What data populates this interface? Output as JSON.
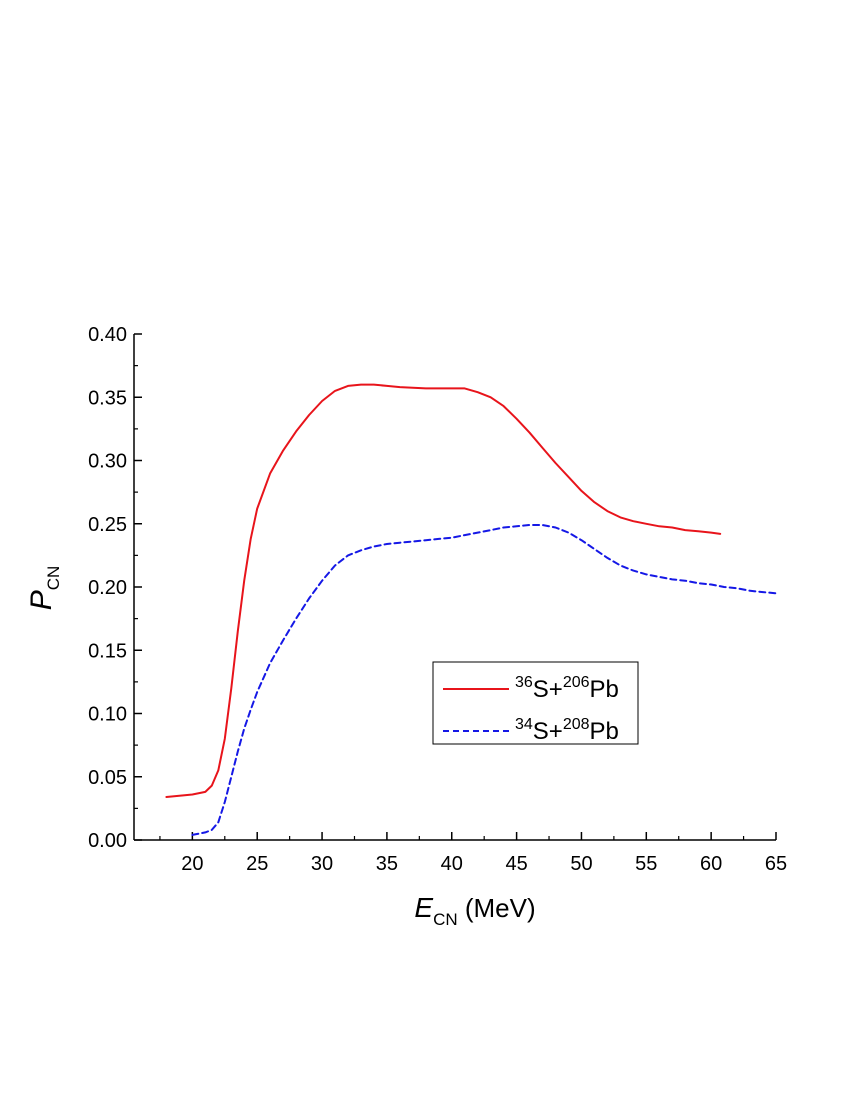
{
  "chart_data": {
    "type": "line",
    "xlabel": {
      "main": "E",
      "sub": "CN",
      "unit": " (MeV)"
    },
    "ylabel": {
      "main": "P",
      "sub": "CN"
    },
    "xlim": [
      15.5,
      65
    ],
    "ylim": [
      0,
      0.4
    ],
    "xticks": [
      20,
      25,
      30,
      35,
      40,
      45,
      50,
      55,
      60,
      65
    ],
    "yticks": [
      0.0,
      0.05,
      0.1,
      0.15,
      0.2,
      0.25,
      0.3,
      0.35,
      0.4
    ],
    "xtick_labels": [
      "20",
      "25",
      "30",
      "35",
      "40",
      "45",
      "50",
      "55",
      "60",
      "65"
    ],
    "ytick_labels": [
      "0.00",
      "0.05",
      "0.10",
      "0.15",
      "0.20",
      "0.25",
      "0.30",
      "0.35",
      "0.40"
    ],
    "grid": false,
    "legend_position": "center-right",
    "series": [
      {
        "label": {
          "sup1": "36",
          "el1": "S+",
          "sup2": "206",
          "el2": "Pb"
        },
        "color": "#e8141b",
        "style": "solid",
        "x": [
          18,
          19,
          20,
          21,
          21.5,
          22,
          22.5,
          23,
          23.5,
          24,
          24.5,
          25,
          26,
          27,
          28,
          29,
          30,
          31,
          32,
          33,
          34,
          35,
          36,
          38,
          40,
          41,
          42,
          43,
          44,
          45,
          46,
          47,
          48,
          49,
          50,
          51,
          52,
          53,
          54,
          55,
          56,
          57,
          58,
          59,
          60,
          60.7
        ],
        "y": [
          0.034,
          0.035,
          0.036,
          0.038,
          0.043,
          0.055,
          0.08,
          0.12,
          0.165,
          0.205,
          0.238,
          0.262,
          0.29,
          0.308,
          0.323,
          0.336,
          0.347,
          0.355,
          0.359,
          0.36,
          0.36,
          0.359,
          0.358,
          0.357,
          0.357,
          0.357,
          0.354,
          0.35,
          0.343,
          0.333,
          0.322,
          0.31,
          0.298,
          0.287,
          0.276,
          0.267,
          0.26,
          0.255,
          0.252,
          0.25,
          0.248,
          0.247,
          0.245,
          0.244,
          0.243,
          0.242
        ]
      },
      {
        "label": {
          "sup1": "34",
          "el1": "S+",
          "sup2": "208",
          "el2": "Pb"
        },
        "color": "#1518e6",
        "style": "dashed",
        "x": [
          20,
          20.5,
          21,
          21.5,
          22,
          22.5,
          23,
          23.5,
          24,
          24.5,
          25,
          26,
          27,
          28,
          29,
          30,
          31,
          32,
          33,
          34,
          35,
          36,
          37,
          38,
          39,
          40,
          41,
          42,
          43,
          44,
          45,
          46,
          47,
          48,
          49,
          50,
          51,
          52,
          53,
          54,
          55,
          56,
          57,
          58,
          59,
          60,
          61,
          62,
          63,
          64,
          65
        ],
        "y": [
          0.004,
          0.005,
          0.006,
          0.008,
          0.014,
          0.03,
          0.05,
          0.07,
          0.088,
          0.103,
          0.117,
          0.14,
          0.158,
          0.175,
          0.191,
          0.205,
          0.217,
          0.225,
          0.229,
          0.232,
          0.234,
          0.235,
          0.236,
          0.237,
          0.238,
          0.239,
          0.241,
          0.243,
          0.245,
          0.247,
          0.248,
          0.249,
          0.249,
          0.247,
          0.243,
          0.237,
          0.23,
          0.223,
          0.217,
          0.213,
          0.21,
          0.208,
          0.206,
          0.205,
          0.203,
          0.202,
          0.2,
          0.199,
          0.197,
          0.196,
          0.195
        ]
      }
    ]
  }
}
